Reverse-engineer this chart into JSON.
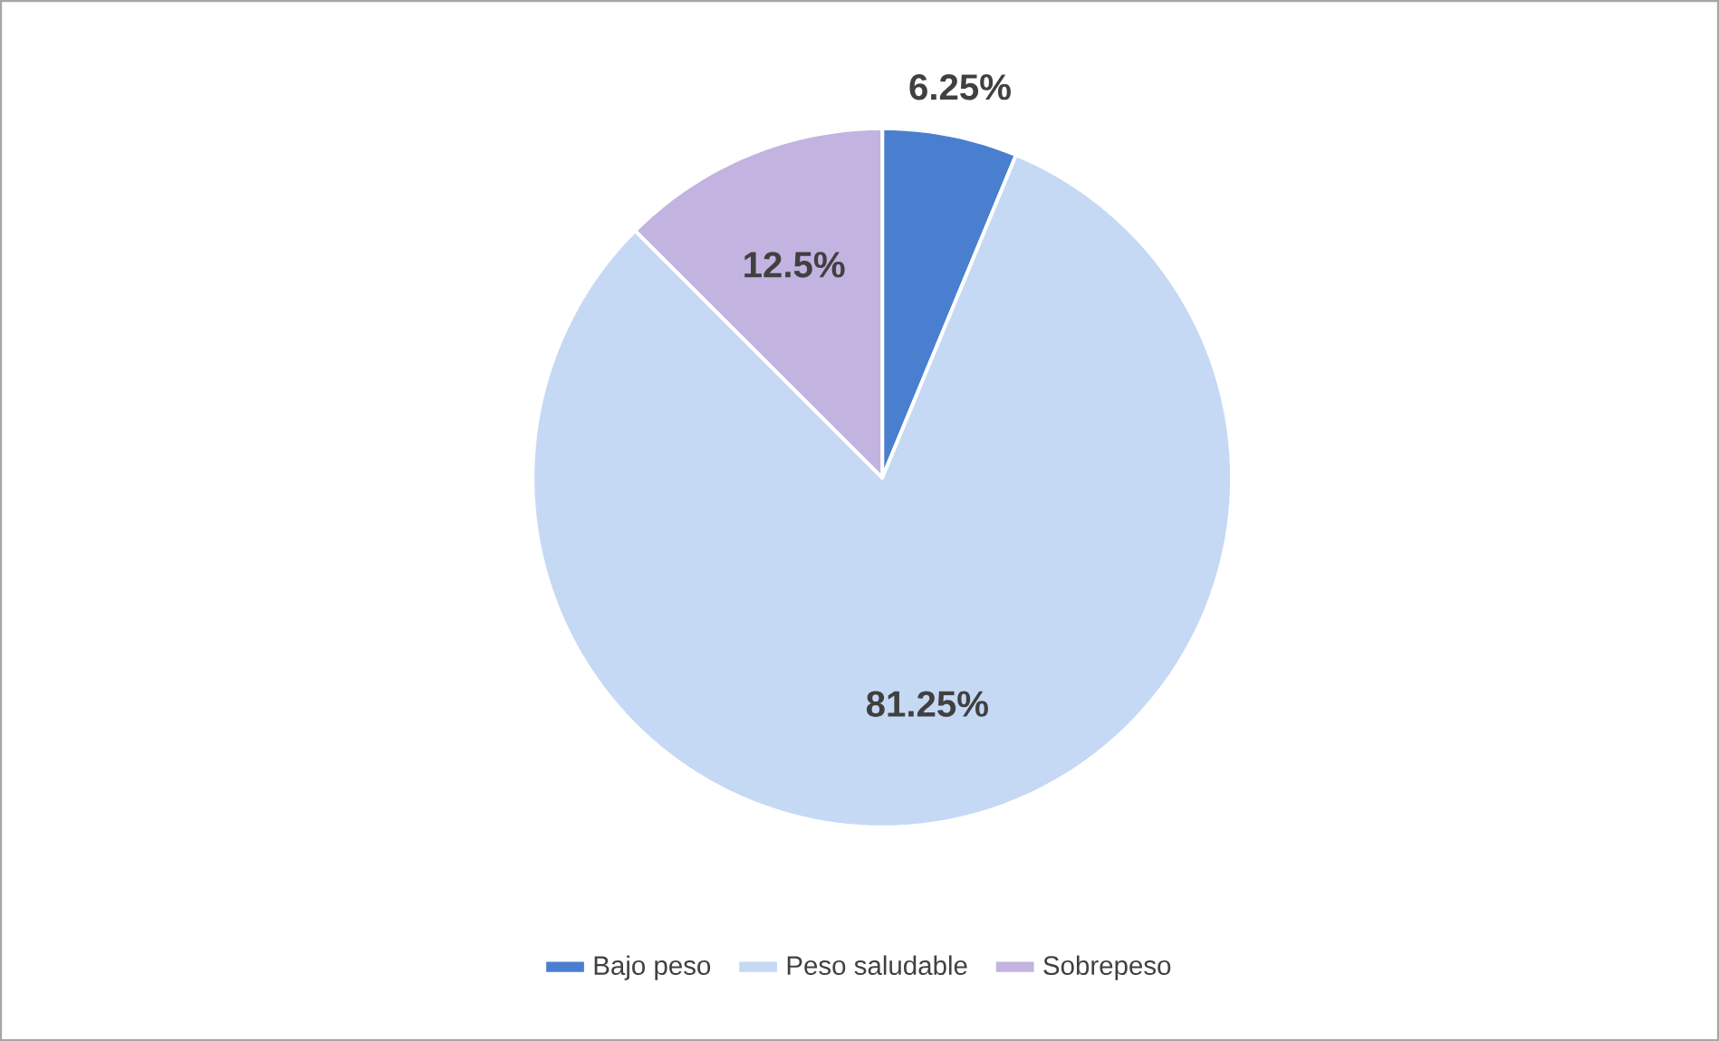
{
  "chart_data": {
    "type": "pie",
    "categories": [
      "Bajo peso",
      "Peso saludable",
      "Sobrepeso"
    ],
    "values": [
      6.25,
      81.25,
      12.5
    ],
    "colors": [
      "#4a7fd0",
      "#c5d9f5",
      "#c3b3e0"
    ],
    "value_labels": [
      "6.25%",
      "81.25%",
      "12.5%"
    ],
    "legend": "bottom"
  }
}
